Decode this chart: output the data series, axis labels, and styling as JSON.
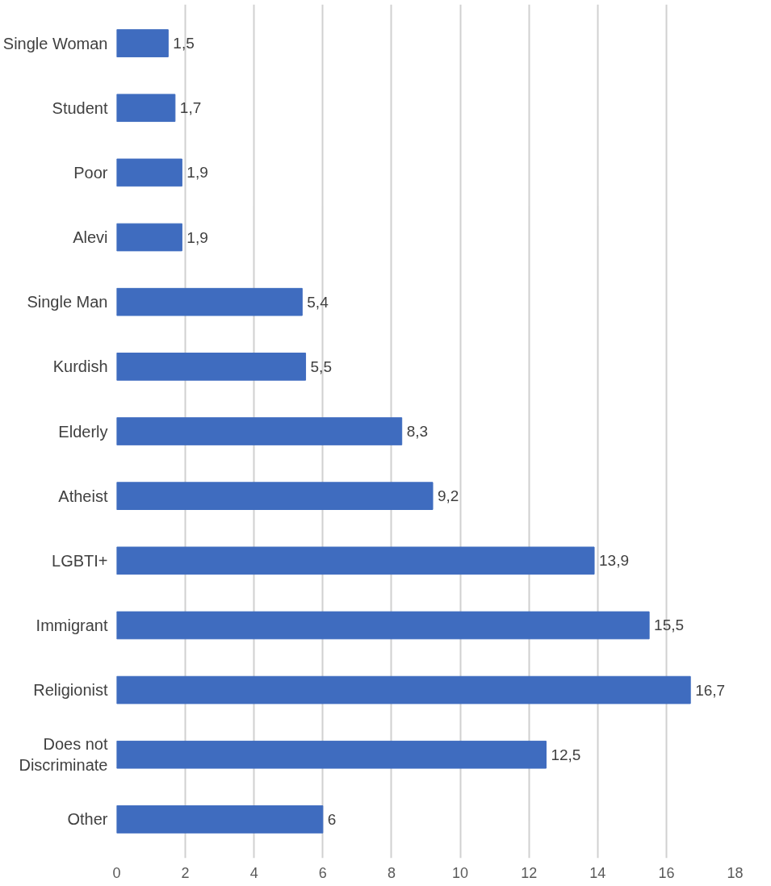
{
  "chart_data": {
    "type": "bar",
    "orientation": "horizontal",
    "categories": [
      "Single Woman",
      "Student",
      "Poor",
      "Alevi",
      "Single Man",
      "Kurdish",
      "Elderly",
      "Atheist",
      "LGBTI+",
      "Immigrant",
      "Religionist",
      "Does not Discriminate",
      "Other"
    ],
    "values": [
      1.5,
      1.7,
      1.9,
      1.9,
      5.4,
      5.5,
      8.3,
      9.2,
      13.9,
      15.5,
      16.7,
      12.5,
      6
    ],
    "value_labels": [
      "1,5",
      "1,7",
      "1,9",
      "1,9",
      "5,4",
      "5,5",
      "8,3",
      "9,2",
      "13,9",
      "15,5",
      "16,7",
      "12,5",
      "6"
    ],
    "color": "#3f6cbf",
    "xlim": [
      0,
      18
    ],
    "xticks": [
      0,
      2,
      4,
      6,
      8,
      10,
      12,
      14,
      16,
      18
    ],
    "grid": "x"
  }
}
